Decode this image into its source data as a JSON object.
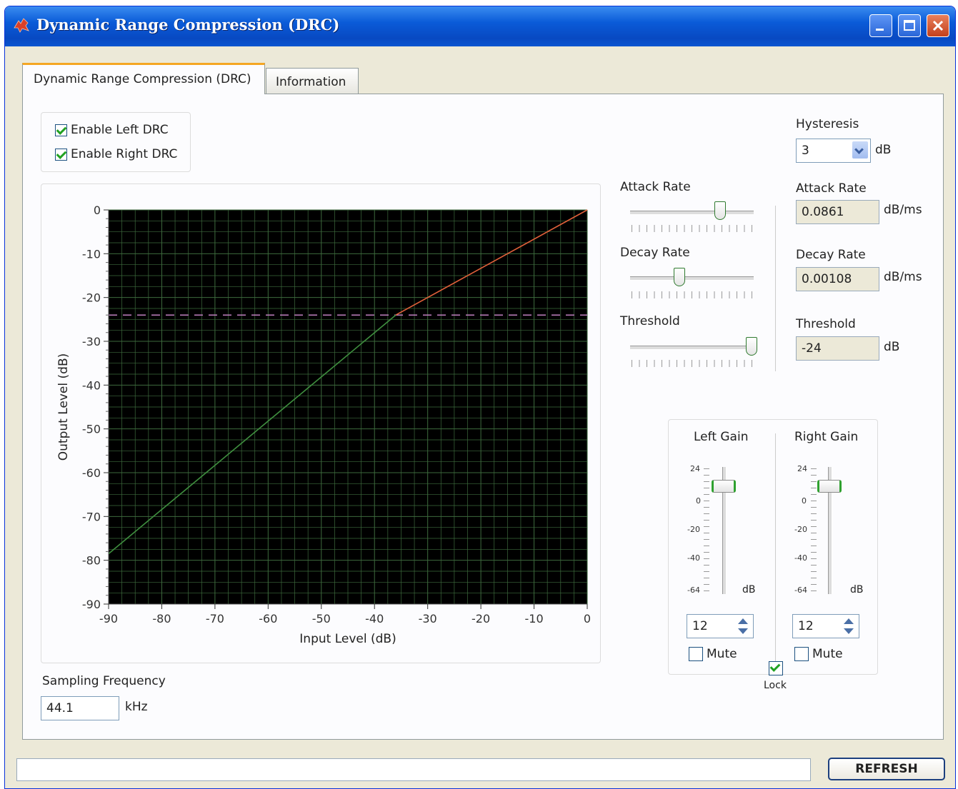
{
  "window": {
    "title": "Dynamic Range Compression (DRC)",
    "icon": "ti-logo-icon"
  },
  "tabs": [
    {
      "label": "Dynamic Range Compression (DRC)",
      "active": true
    },
    {
      "label": "Information",
      "active": false
    }
  ],
  "enable": {
    "left": {
      "label": "Enable Left DRC",
      "checked": true
    },
    "right": {
      "label": "Enable Right DRC",
      "checked": true
    }
  },
  "chart_data": {
    "type": "line",
    "xlabel": "Input Level (dB)",
    "ylabel": "Output Level (dB)",
    "xlim": [
      -90,
      0
    ],
    "ylim": [
      -90,
      0
    ],
    "xticks": [
      "-90",
      "-80",
      "-70",
      "-60",
      "-50",
      "-40",
      "-30",
      "-20",
      "-10",
      "0"
    ],
    "yticks": [
      "0",
      "-10",
      "-20",
      "-30",
      "-40",
      "-50",
      "-60",
      "-70",
      "-80",
      "-90"
    ],
    "grid": true,
    "background": "#000000",
    "series": [
      {
        "color": "#3f8f3f",
        "x": [
          -90,
          -36
        ],
        "y": [
          -78.5,
          -24
        ]
      },
      {
        "color": "#e0603a",
        "x": [
          -36,
          0
        ],
        "y": [
          -24,
          0
        ]
      }
    ],
    "threshold_line": {
      "y": -24,
      "color": "#c080c0",
      "style": "dashed"
    }
  },
  "controls": {
    "attack_slider_label": "Attack Rate",
    "decay_slider_label": "Decay Rate",
    "threshold_slider_label": "Threshold",
    "attack_slider_pos": 0.73,
    "decay_slider_pos": 0.4,
    "threshold_slider_pos": 0.98
  },
  "hysteresis": {
    "label": "Hysteresis",
    "value": "3",
    "unit": "dB"
  },
  "attack": {
    "label": "Attack Rate",
    "value": "0.0861",
    "unit": "dB/ms"
  },
  "decay": {
    "label": "Decay Rate",
    "value": "0.00108",
    "unit": "dB/ms"
  },
  "threshold": {
    "label": "Threshold",
    "value": "-24",
    "unit": "dB"
  },
  "gain": {
    "left": {
      "label": "Left Gain",
      "value": "12",
      "mute_label": "Mute",
      "mute": false
    },
    "right": {
      "label": "Right Gain",
      "value": "12",
      "mute_label": "Mute",
      "mute": false
    },
    "scale": [
      "24",
      "0",
      "-20",
      "-40",
      "-64"
    ],
    "unit": "dB",
    "lock_label": "Lock",
    "lock": true
  },
  "sampling": {
    "label": "Sampling Frequency",
    "value": "44.1",
    "unit": "kHz"
  },
  "refresh_label": "REFRESH"
}
